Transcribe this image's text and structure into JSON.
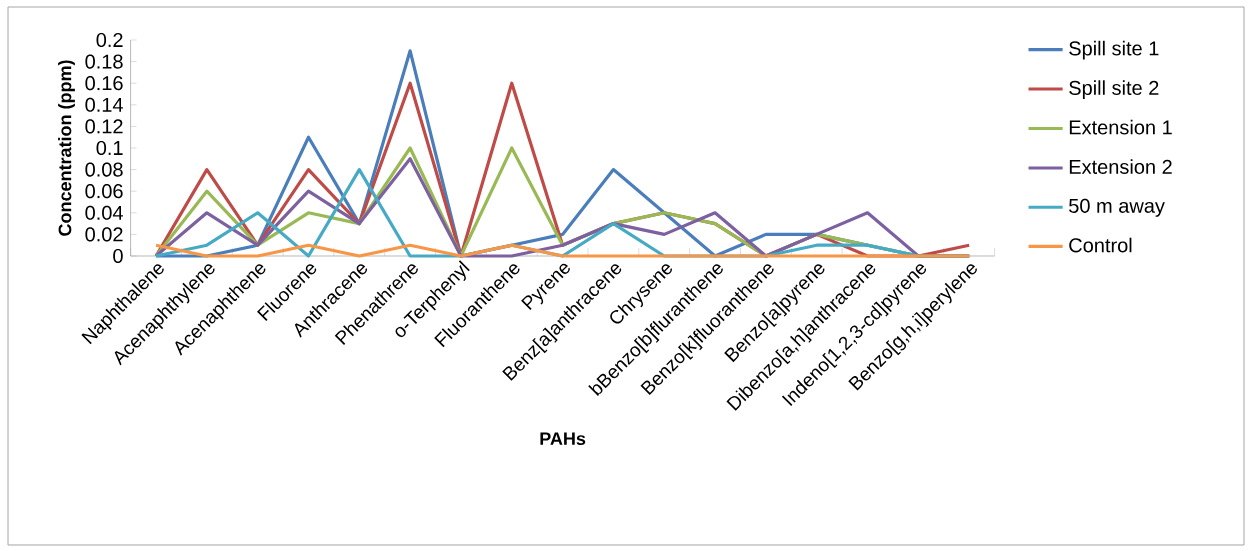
{
  "chart_data": {
    "type": "line",
    "xlabel": "PAHs",
    "ylabel": "Concentration (ppm)",
    "categories": [
      "Naphthalene",
      "Acenaphthylene",
      "Acenaphthene",
      "Fluorene",
      "Anthracene",
      "Phenathrene",
      "o-Terphenyl",
      "Fluoranthene",
      "Pyrene",
      "Benz[a]anthracene",
      "Chrysene",
      "bBenzo[b]fluranthene",
      "Benzo[k]fluoranthene",
      "Benzo[a]pyrene",
      "Dibenzo[a,h]anthracene",
      "Indeno[1,2,3-cd]pyrene",
      "Benzo[g,h,i]perylene"
    ],
    "series": [
      {
        "name": "Spill site 1",
        "color": "#4a7ebb",
        "values": [
          0,
          0,
          0.01,
          0.11,
          0.03,
          0.19,
          0,
          0.01,
          0.02,
          0.08,
          0.04,
          0,
          0.02,
          0.02,
          0.01,
          0,
          0
        ]
      },
      {
        "name": "Spill site 2",
        "color": "#be4b48",
        "values": [
          0,
          0.08,
          0.01,
          0.08,
          0.03,
          0.16,
          0,
          0.16,
          0.01,
          0.03,
          0.04,
          0.03,
          0,
          0.02,
          0,
          0,
          0.01
        ]
      },
      {
        "name": "Extension 1",
        "color": "#98b954",
        "values": [
          0,
          0.06,
          0.01,
          0.04,
          0.03,
          0.1,
          0,
          0.1,
          0.01,
          0.03,
          0.04,
          0.03,
          0,
          0.02,
          0.01,
          0,
          0
        ]
      },
      {
        "name": "Extension 2",
        "color": "#7d60a0",
        "values": [
          0,
          0.04,
          0.01,
          0.06,
          0.03,
          0.09,
          0,
          0,
          0.01,
          0.03,
          0.02,
          0.04,
          0,
          0.02,
          0.04,
          0,
          0
        ]
      },
      {
        "name": "50 m away",
        "color": "#46aac5",
        "values": [
          0,
          0.01,
          0.04,
          0,
          0.08,
          0,
          0,
          0.01,
          0,
          0.03,
          0,
          0,
          0,
          0.01,
          0.01,
          0,
          0
        ]
      },
      {
        "name": "Control",
        "color": "#f79646",
        "values": [
          0.01,
          0,
          0,
          0.01,
          0,
          0.01,
          0,
          0.01,
          0,
          0,
          0,
          0,
          0,
          0,
          0,
          0,
          0
        ]
      }
    ],
    "ylim": [
      0,
      0.2
    ],
    "yticks": [
      0,
      0.02,
      0.04,
      0.06,
      0.08,
      0.1,
      0.12,
      0.14,
      0.16,
      0.18,
      0.2
    ],
    "legend": "right",
    "marker": "none"
  }
}
